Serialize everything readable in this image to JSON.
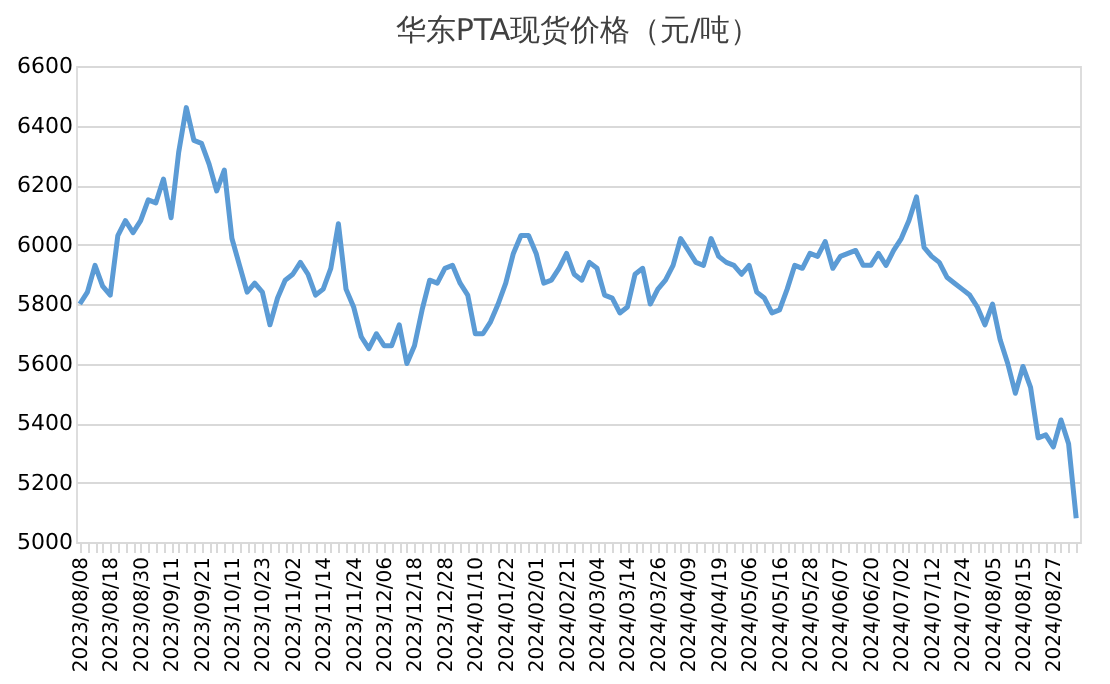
{
  "chart_data": {
    "type": "line",
    "title": "华东PTA现货价格（元/吨）",
    "categories": [
      "2023/08/08",
      null,
      null,
      null,
      "2023/08/18",
      null,
      null,
      null,
      "2023/08/30",
      null,
      null,
      null,
      "2023/09/11",
      null,
      null,
      null,
      "2023/09/21",
      null,
      null,
      null,
      "2023/10/11",
      null,
      null,
      null,
      "2023/10/23",
      null,
      null,
      null,
      "2023/11/02",
      null,
      null,
      null,
      "2023/11/14",
      null,
      null,
      null,
      "2023/11/24",
      null,
      null,
      null,
      "2023/12/06",
      null,
      null,
      null,
      "2023/12/18",
      null,
      null,
      null,
      "2023/12/28",
      null,
      null,
      null,
      "2024/01/10",
      null,
      null,
      null,
      "2024/01/22",
      null,
      null,
      null,
      "2024/02/01",
      null,
      null,
      null,
      "2024/02/21",
      null,
      null,
      null,
      "2024/03/04",
      null,
      null,
      null,
      "2024/03/14",
      null,
      null,
      null,
      "2024/03/26",
      null,
      null,
      null,
      "2024/04/09",
      null,
      null,
      null,
      "2024/04/19",
      null,
      null,
      null,
      "2024/05/06",
      null,
      null,
      null,
      "2024/05/16",
      null,
      null,
      null,
      "2024/05/28",
      null,
      null,
      null,
      "2024/06/07",
      null,
      null,
      null,
      "2024/06/20",
      null,
      null,
      null,
      "2024/07/02",
      null,
      null,
      null,
      "2024/07/12",
      null,
      null,
      null,
      "2024/07/24",
      null,
      null,
      null,
      "2024/08/05",
      null,
      null,
      null,
      "2024/08/15",
      null,
      null,
      null,
      "2024/08/27",
      null,
      null,
      null
    ],
    "series": [
      {
        "color": "#5b9bd5",
        "values": [
          5800,
          5840,
          5930,
          5860,
          5830,
          6030,
          6080,
          6040,
          6080,
          6150,
          6140,
          6220,
          6090,
          6310,
          6460,
          6350,
          6340,
          6270,
          6180,
          6250,
          6020,
          5930,
          5840,
          5870,
          5840,
          5730,
          5820,
          5880,
          5900,
          5940,
          5900,
          5830,
          5850,
          5920,
          6070,
          5850,
          5790,
          5690,
          5650,
          5700,
          5660,
          5660,
          5730,
          5600,
          5660,
          5780,
          5880,
          5870,
          5920,
          5930,
          5870,
          5830,
          5700,
          5700,
          5740,
          5800,
          5870,
          5970,
          6030,
          6030,
          5970,
          5870,
          5880,
          5920,
          5970,
          5900,
          5880,
          5940,
          5920,
          5830,
          5820,
          5770,
          5790,
          5900,
          5920,
          5800,
          5850,
          5880,
          5930,
          6020,
          5980,
          5940,
          5930,
          6020,
          5960,
          5940,
          5930,
          5900,
          5930,
          5840,
          5820,
          5770,
          5780,
          5850,
          5930,
          5920,
          5970,
          5960,
          6010,
          5920,
          5960,
          5970,
          5980,
          5930,
          5930,
          5970,
          5930,
          5980,
          6020,
          6080,
          6160,
          5990,
          5960,
          5940,
          5890,
          5870,
          5850,
          5830,
          5790,
          5730,
          5800,
          5680,
          5600,
          5500,
          5590,
          5520,
          5350,
          5360,
          5320,
          5410,
          5330,
          5080
        ]
      }
    ],
    "ylim": [
      5000,
      6600
    ],
    "yticks": [
      5000,
      5200,
      5400,
      5600,
      5800,
      6000,
      6200,
      6400,
      6600
    ],
    "grid": "y",
    "legend": false,
    "marker": "none",
    "line_style": "solid"
  }
}
